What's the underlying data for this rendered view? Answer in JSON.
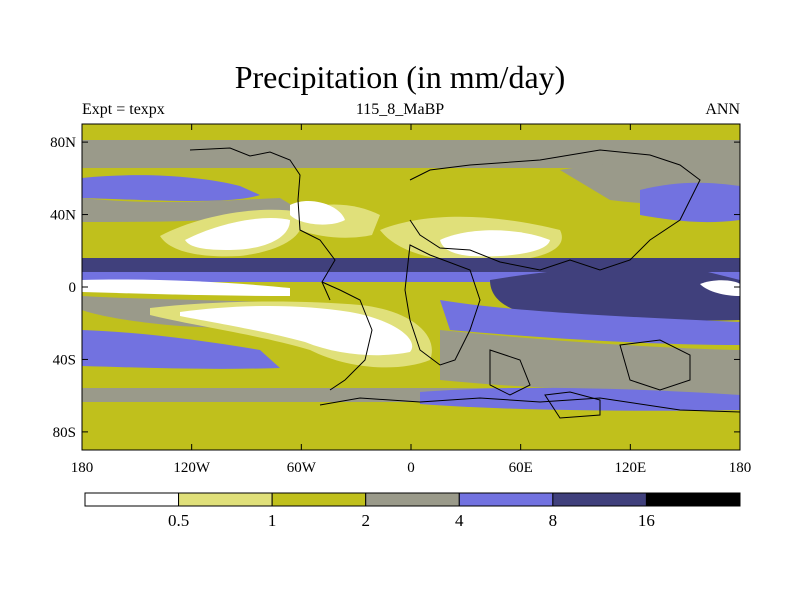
{
  "title": "Precipitation (in mm/day)",
  "subtitle_left": "Expt = texpx",
  "subtitle_center": "115_8_MaBP",
  "subtitle_right": "ANN",
  "map": {
    "lon_range": [
      -180,
      180
    ],
    "lat_range": [
      -90,
      90
    ],
    "x_ticks": [
      {
        "value": -180,
        "label": "180"
      },
      {
        "value": -120,
        "label": "120W"
      },
      {
        "value": -60,
        "label": "60W"
      },
      {
        "value": 0,
        "label": "0"
      },
      {
        "value": 60,
        "label": "60E"
      },
      {
        "value": 120,
        "label": "120E"
      },
      {
        "value": 180,
        "label": "180"
      }
    ],
    "y_ticks": [
      {
        "value": 80,
        "label": "80N"
      },
      {
        "value": 40,
        "label": "40N"
      },
      {
        "value": 0,
        "label": "0"
      },
      {
        "value": -40,
        "label": "40S"
      },
      {
        "value": -80,
        "label": "80S"
      }
    ]
  },
  "colorbar": {
    "colors": [
      "#ffffff",
      "#e0e07a",
      "#c0c01c",
      "#9a9a8a",
      "#7272e0",
      "#40407c",
      "#000000"
    ],
    "labels": [
      "0.5",
      "1",
      "2",
      "4",
      "8",
      "16"
    ]
  }
}
